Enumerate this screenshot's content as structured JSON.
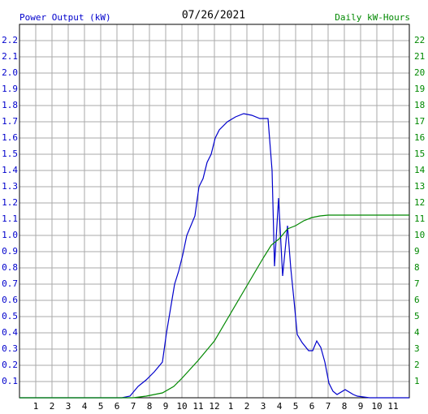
{
  "chart_data": {
    "type": "line",
    "title": "07/26/2021",
    "y_label": "Power Output (kW)",
    "y2_label": "Daily kW-Hours",
    "xlim": [
      0,
      24
    ],
    "xticks": [
      1,
      2,
      3,
      4,
      5,
      6,
      7,
      8,
      9,
      10,
      11,
      12,
      {
        "value": 13,
        "label": "1"
      },
      {
        "value": 14,
        "label": "2"
      },
      {
        "value": 15,
        "label": "3"
      },
      {
        "value": 16,
        "label": "4"
      },
      {
        "value": 17,
        "label": "5"
      },
      {
        "value": 18,
        "label": "6"
      },
      {
        "value": 19,
        "label": "7"
      },
      {
        "value": 20,
        "label": "8"
      },
      {
        "value": 21,
        "label": "9"
      },
      {
        "value": 22,
        "label": "10"
      },
      {
        "value": 23,
        "label": "11"
      }
    ],
    "ylim": [
      0,
      2.3
    ],
    "yticks": [
      0.1,
      0.2,
      0.3,
      0.4,
      0.5,
      0.6,
      0.7,
      0.8,
      0.9,
      {
        "value": 1,
        "label": "1.0"
      },
      1.1,
      1.2,
      1.3,
      1.4,
      1.5,
      1.6,
      1.7,
      1.8,
      1.9,
      {
        "value": 2,
        "label": "2.0"
      },
      2.1,
      2.2
    ],
    "y2lim": [
      0,
      23
    ],
    "y2ticks": [
      1,
      2,
      3,
      4,
      5,
      6,
      7,
      8,
      9,
      10,
      11,
      12,
      13,
      14,
      15,
      16,
      17,
      18,
      19,
      20,
      21,
      22
    ],
    "grid": true,
    "series": [
      {
        "name": "Power Output (kW)",
        "color": "#0000cc",
        "x": [
          0,
          6.3,
          6.8,
          7.3,
          7.8,
          8.3,
          8.8,
          9.05,
          9.3,
          9.55,
          9.8,
          10.05,
          10.3,
          10.8,
          11.05,
          11.3,
          11.55,
          11.8,
          12.05,
          12.3,
          12.8,
          13.3,
          13.8,
          14.3,
          14.8,
          15.3,
          15.55,
          15.7,
          15.95,
          16.2,
          16.5,
          16.7,
          16.9,
          17.1,
          17.4,
          17.8,
          18.05,
          18.3,
          18.55,
          18.8,
          19.05,
          19.3,
          19.55,
          20.05,
          20.55,
          20.8,
          21.55,
          24
        ],
        "values": [
          0,
          0,
          0.01,
          0.07,
          0.11,
          0.16,
          0.22,
          0.4,
          0.55,
          0.7,
          0.78,
          0.88,
          1.0,
          1.12,
          1.3,
          1.35,
          1.45,
          1.5,
          1.6,
          1.65,
          1.7,
          1.73,
          1.75,
          1.74,
          1.72,
          1.72,
          1.4,
          0.81,
          1.23,
          0.75,
          1.06,
          0.8,
          0.6,
          0.39,
          0.34,
          0.29,
          0.29,
          0.35,
          0.31,
          0.22,
          0.09,
          0.04,
          0.02,
          0.05,
          0.02,
          0.01,
          0,
          0
        ]
      },
      {
        "name": "Daily kW-Hours",
        "color": "#008800",
        "axis": "y2",
        "x": [
          0,
          7,
          7.8,
          8.8,
          9.5,
          10,
          11,
          12,
          13,
          14,
          15,
          15.5,
          16,
          16.5,
          17,
          17.5,
          18,
          18.5,
          19,
          24
        ],
        "values": [
          0,
          0,
          0.1,
          0.3,
          0.7,
          1.2,
          2.3,
          3.5,
          5.2,
          6.9,
          8.6,
          9.4,
          9.8,
          10.4,
          10.6,
          10.9,
          11.1,
          11.2,
          11.25,
          11.25
        ]
      }
    ]
  }
}
